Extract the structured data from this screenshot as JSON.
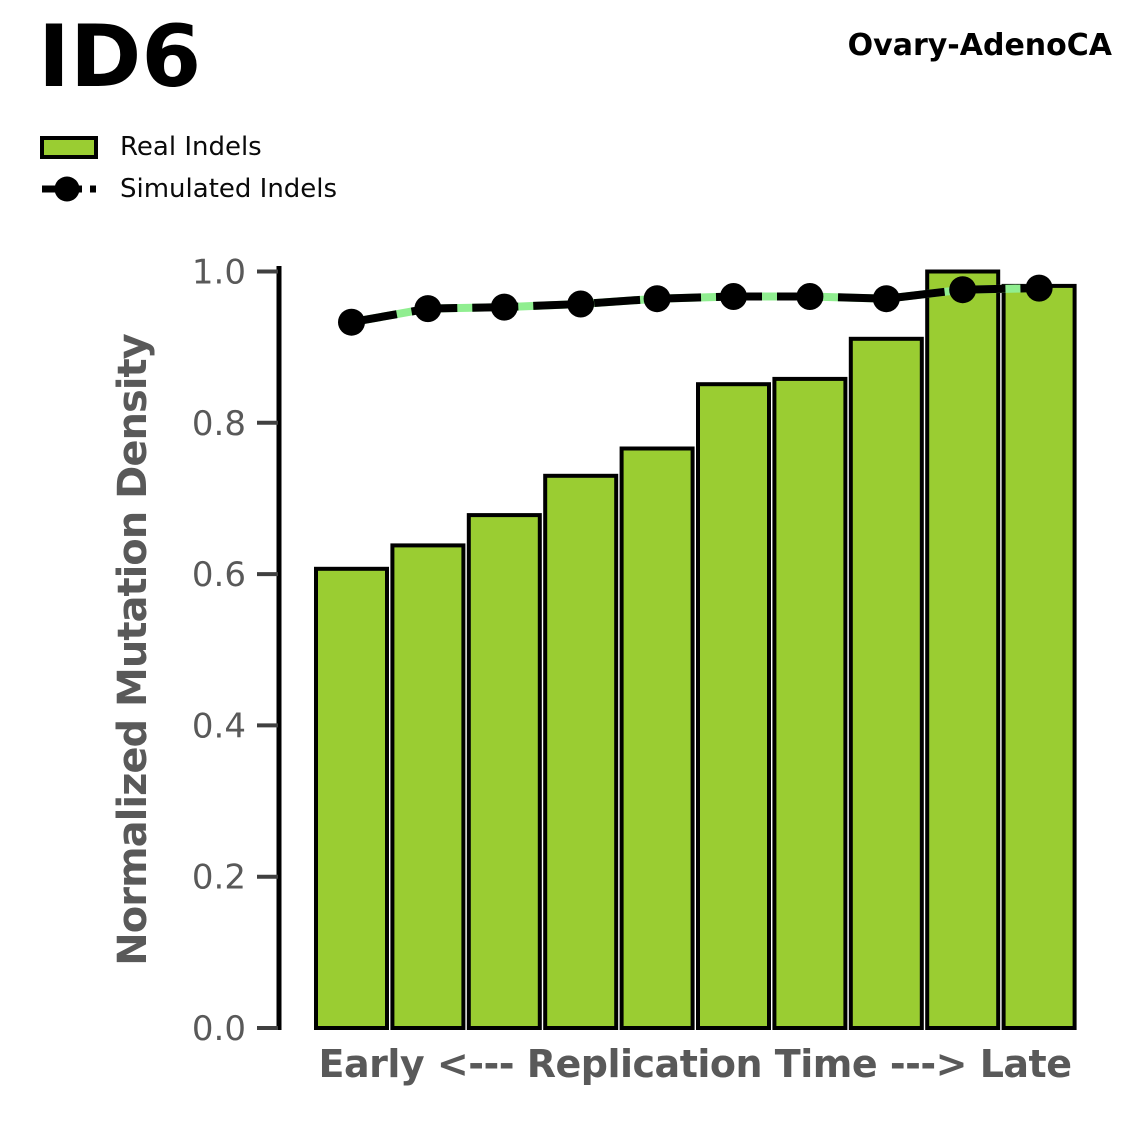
{
  "header": {
    "title": "ID6",
    "cohort": "Ovary-AdenoCA"
  },
  "legend": {
    "items": [
      {
        "label": "Real Indels",
        "marker": "bar-swatch"
      },
      {
        "label": "Simulated Indels",
        "marker": "line-dot"
      }
    ]
  },
  "chart_data": {
    "type": "bar",
    "title": "ID6",
    "subtitle": "Ovary-AdenoCA",
    "xlabel": "Early <--- Replication Time ---> Late",
    "ylabel": "Normalized Mutation Density",
    "x_description": "10 replication-timing bins from Early to Late (no tick labels)",
    "categories": [
      "bin1",
      "bin2",
      "bin3",
      "bin4",
      "bin5",
      "bin6",
      "bin7",
      "bin8",
      "bin9",
      "bin10"
    ],
    "series": [
      {
        "name": "Real Indels",
        "type": "bar",
        "values": [
          0.607,
          0.638,
          0.678,
          0.73,
          0.766,
          0.851,
          0.858,
          0.911,
          1.0,
          0.981
        ]
      },
      {
        "name": "Simulated Indels",
        "type": "line",
        "values": [
          0.933,
          0.951,
          0.953,
          0.957,
          0.964,
          0.967,
          0.967,
          0.964,
          0.976,
          0.978
        ]
      }
    ],
    "ylim": [
      0.0,
      1.0
    ],
    "yticks": [
      0.0,
      0.2,
      0.4,
      0.6,
      0.8,
      1.0
    ],
    "ytick_labels": [
      "0.0",
      "0.2",
      "0.4",
      "0.6",
      "0.8",
      "1.0"
    ],
    "grid": "off",
    "legend_position": "top-left outside plot",
    "line_style": "black dashed over solid light-green underlay, filled circle markers"
  },
  "colors": {
    "bar_fill": "#9ACD32",
    "bar_edge": "#000000",
    "line": "#000000",
    "line_underlay": "#90EE90",
    "marker": "#000000",
    "axis_text": "#595959",
    "tick_mark": "#404040",
    "spine": "#000000",
    "title_text": "#000000"
  }
}
